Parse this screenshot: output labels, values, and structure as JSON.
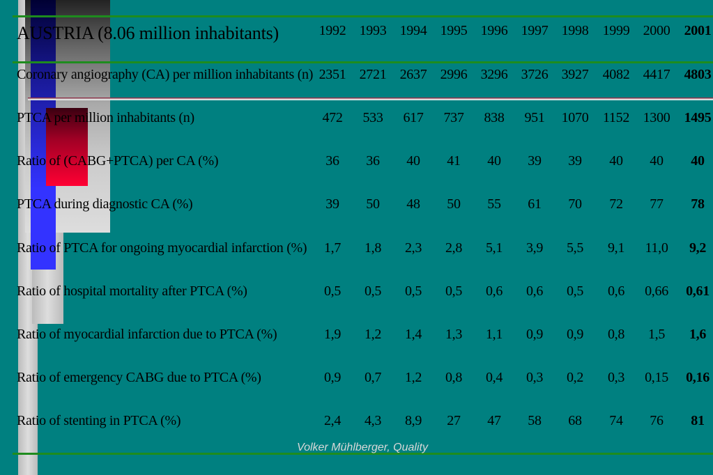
{
  "table": {
    "title": "AUSTRIA (8.06 million inhabitants)",
    "years": [
      "1992",
      "1993",
      "1994",
      "1995",
      "1996",
      "1997",
      "1998",
      "1999",
      "2000",
      "2001"
    ],
    "rows": [
      {
        "label": "Coronary angiography (CA) per million inhabitants (n)",
        "values": [
          "2351",
          "2721",
          "2637",
          "2996",
          "3296",
          "3726",
          "3927",
          "4082",
          "4417",
          "4803"
        ]
      },
      {
        "label": "PTCA per million inhabitants (n)",
        "values": [
          "472",
          "533",
          "617",
          "737",
          "838",
          "951",
          "1070",
          "1152",
          "1300",
          "1495"
        ]
      },
      {
        "label": "Ratio of (CABG+PTCA) per CA (%)",
        "values": [
          "36",
          "36",
          "40",
          "41",
          "40",
          "39",
          "39",
          "40",
          "40",
          "40"
        ]
      },
      {
        "label": "PTCA during diagnostic CA (%)",
        "values": [
          "39",
          "50",
          "48",
          "50",
          "55",
          "61",
          "70",
          "72",
          "77",
          "78"
        ]
      },
      {
        "label": "Ratio of PTCA for ongoing myocardial infarction (%)",
        "values": [
          "1,7",
          "1,8",
          "2,3",
          "2,8",
          "5,1",
          "3,9",
          "5,5",
          "9,1",
          "11,0",
          "9,2"
        ]
      },
      {
        "label": "Ratio of hospital mortality after PTCA (%)",
        "values": [
          "0,5",
          "0,5",
          "0,5",
          "0,5",
          "0,6",
          "0,6",
          "0,5",
          "0,6",
          "0,66",
          "0,61"
        ]
      },
      {
        "label": "Ratio of myocardial infarction due to PTCA (%)",
        "values": [
          "1,9",
          "1,2",
          "1,4",
          "1,3",
          "1,1",
          "0,9",
          "0,9",
          "0,8",
          "1,5",
          "1,6"
        ]
      },
      {
        "label": "Ratio of emergency CABG due to PTCA (%)",
        "values": [
          "0,9",
          "0,7",
          "1,2",
          "0,8",
          "0,4",
          "0,3",
          "0,2",
          "0,3",
          "0,15",
          "0,16"
        ]
      },
      {
        "label": "Ratio of stenting in PTCA (%)",
        "values": [
          "2,4",
          "4,3",
          "8,9",
          "27",
          "47",
          "58",
          "68",
          "74",
          "76",
          "81"
        ]
      }
    ]
  },
  "footer": {
    "text": "Volker Mühlberger, Quality"
  },
  "colors": {
    "background": "#008080",
    "rule": "#1e8c1e",
    "accent_blue": "#3333ff",
    "accent_red": "#ff0033"
  }
}
